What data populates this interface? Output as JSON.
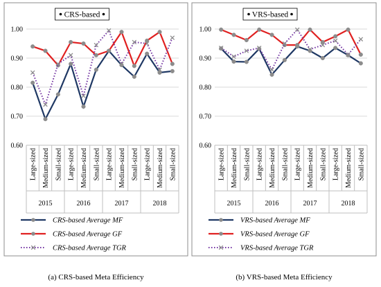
{
  "chart_data": [
    {
      "type": "line",
      "title": "CRS-based",
      "caption": "(a) CRS-based Meta Efficiency",
      "ylim": [
        0.6,
        1.0
      ],
      "yticks": [
        "0.60",
        "0.70",
        "0.80",
        "0.90",
        "1.00"
      ],
      "grid": true,
      "legend_position": "bottom",
      "categories": [
        "Large-sized",
        "Medium-sized",
        "Small-sized",
        "Large-sized",
        "Medium-sized",
        "Small-sized",
        "Large-sized",
        "Medium-sized",
        "Small-sized",
        "Large-sized",
        "Medium-sized",
        "Small-sized"
      ],
      "groups": [
        "2015",
        "2016",
        "2017",
        "2018"
      ],
      "series": [
        {
          "name": "CRS-based Average MF",
          "color": "#1f3864",
          "marker": "circle",
          "dash": "solid",
          "values": [
            0.815,
            0.69,
            0.775,
            0.88,
            0.733,
            0.86,
            0.925,
            0.876,
            0.836,
            0.915,
            0.85,
            0.855
          ]
        },
        {
          "name": "CRS-based Average GF",
          "color": "#e02020",
          "marker": "circle",
          "dash": "solid",
          "values": [
            0.94,
            0.925,
            0.875,
            0.955,
            0.95,
            0.91,
            0.925,
            0.99,
            0.873,
            0.96,
            0.99,
            0.88
          ]
        },
        {
          "name": "CRS-based Average TGR",
          "color": "#7030a0",
          "marker": "x",
          "dash": "dotted",
          "values": [
            0.85,
            0.74,
            0.88,
            0.91,
            0.77,
            0.945,
            0.995,
            0.88,
            0.955,
            0.95,
            0.86,
            0.97
          ]
        }
      ]
    },
    {
      "type": "line",
      "title": "VRS-based",
      "caption": "(b) VRS-based Meta Efficiency",
      "ylim": [
        0.6,
        1.0
      ],
      "yticks": [
        "0.60",
        "0.70",
        "0.80",
        "0.90",
        "1.00"
      ],
      "grid": true,
      "legend_position": "bottom",
      "categories": [
        "Large-sized",
        "Medium-sized",
        "Small-sized",
        "Large-sized",
        "Medium-sized",
        "Small-sized",
        "Large-sized",
        "Medium-sized",
        "Small-sized",
        "Large-sized",
        "Medium-sized",
        "Small-sized"
      ],
      "groups": [
        "2015",
        "2016",
        "2017",
        "2018"
      ],
      "series": [
        {
          "name": "VRS-based Average MF",
          "color": "#1f3864",
          "marker": "circle",
          "dash": "solid",
          "values": [
            0.933,
            0.888,
            0.887,
            0.932,
            0.843,
            0.893,
            0.94,
            0.925,
            0.9,
            0.935,
            0.91,
            0.882
          ]
        },
        {
          "name": "VRS-based Average GF",
          "color": "#e02020",
          "marker": "circle",
          "dash": "solid",
          "values": [
            0.998,
            0.98,
            0.962,
            0.998,
            0.98,
            0.945,
            0.945,
            0.998,
            0.955,
            0.975,
            0.998,
            0.912
          ]
        },
        {
          "name": "VRS-based Average TGR",
          "color": "#7030a0",
          "marker": "x",
          "dash": "dotted",
          "values": [
            0.935,
            0.905,
            0.925,
            0.935,
            0.86,
            0.95,
            0.998,
            0.93,
            0.945,
            0.96,
            0.912,
            0.965
          ]
        }
      ]
    }
  ]
}
